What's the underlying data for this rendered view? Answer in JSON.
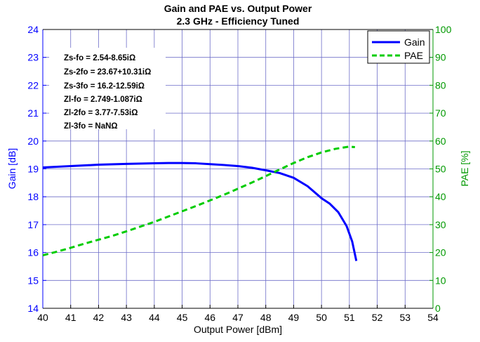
{
  "chart_data": {
    "type": "line",
    "title": "Gain and PAE vs. Output Power",
    "subtitle": "2.3 GHz - Efficiency Tuned",
    "xlabel": "Output Power [dBm]",
    "ylabel_left": "Gain [dB]",
    "ylabel_right": "PAE [%]",
    "xlim": [
      40,
      54
    ],
    "ylim_left": [
      14,
      24
    ],
    "ylim_right": [
      0,
      100
    ],
    "x_ticks": [
      "40",
      "41",
      "42",
      "43",
      "44",
      "45",
      "46",
      "47",
      "48",
      "49",
      "50",
      "51",
      "52",
      "53",
      "54"
    ],
    "y_left_ticks": [
      "14",
      "15",
      "16",
      "17",
      "18",
      "19",
      "20",
      "21",
      "22",
      "23",
      "24"
    ],
    "y_right_ticks": [
      "0",
      "10",
      "20",
      "30",
      "40",
      "50",
      "60",
      "70",
      "80",
      "90",
      "100"
    ],
    "grid": true,
    "legend_position": "top-right",
    "annotations": [
      "Zs-fo = 2.54-8.65iΩ",
      "Zs-2fo = 23.67+10.31iΩ",
      "Zs-3fo = 16.2-12.59iΩ",
      "Zl-fo = 2.749-1.087iΩ",
      "Zl-2fo = 3.77-7.53iΩ",
      "Zl-3fo = NaNΩ"
    ],
    "colors": {
      "gain": "#0000ff",
      "pae": "#00cc00",
      "left_axis": "#0000ff",
      "right_axis": "#009900",
      "grid": "#6e6ec8"
    },
    "series": [
      {
        "name": "Gain",
        "axis": "left",
        "style": "solid",
        "x": [
          40,
          41,
          42,
          43,
          44,
          44.5,
          45,
          45.5,
          46,
          46.5,
          47,
          47.5,
          48,
          48.5,
          49,
          49.5,
          50,
          50.3,
          50.6,
          50.9,
          51.1,
          51.25
        ],
        "y": [
          19.05,
          19.1,
          19.15,
          19.18,
          19.2,
          19.21,
          19.21,
          19.2,
          19.17,
          19.14,
          19.1,
          19.04,
          18.95,
          18.85,
          18.68,
          18.38,
          17.95,
          17.75,
          17.45,
          16.95,
          16.4,
          15.7
        ]
      },
      {
        "name": "PAE",
        "axis": "right",
        "style": "dashed",
        "x": [
          40,
          40.5,
          41,
          41.5,
          42,
          42.5,
          43,
          43.5,
          44,
          44.5,
          45,
          45.5,
          46,
          46.5,
          47,
          47.5,
          48,
          48.5,
          49,
          49.5,
          50,
          50.5,
          51,
          51.2
        ],
        "y": [
          19,
          20.3,
          21.7,
          23.2,
          24.6,
          26,
          27.6,
          29.3,
          31,
          32.9,
          34.8,
          36.7,
          38.7,
          40.7,
          42.9,
          45.1,
          47.4,
          49.8,
          52.1,
          54.2,
          55.9,
          57.2,
          58,
          57.8
        ]
      }
    ]
  }
}
